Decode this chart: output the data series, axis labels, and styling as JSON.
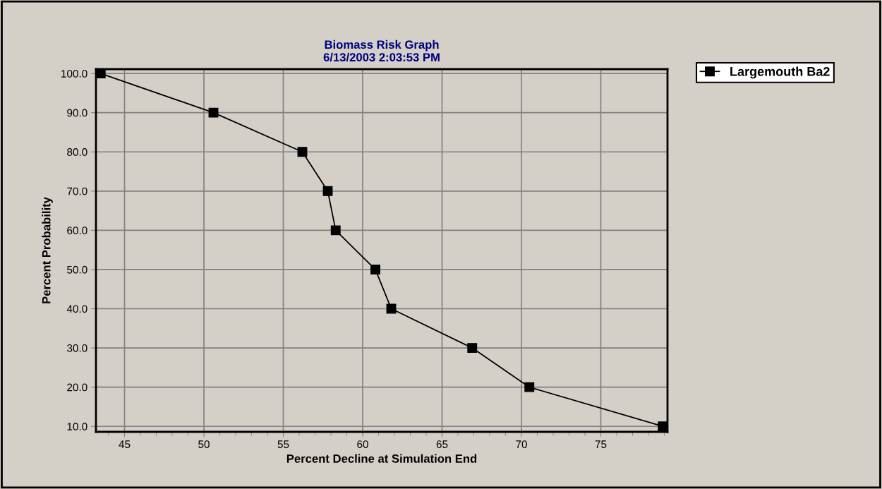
{
  "chart_data": {
    "type": "line",
    "title": "Biomass Risk Graph\n6/13/2003 2:03:53 PM",
    "xlabel": "Percent Decline at Simulation End",
    "ylabel": "Percent Probability",
    "x": [
      43.5,
      50.6,
      56.2,
      57.8,
      58.3,
      60.8,
      61.8,
      66.9,
      70.5,
      78.9
    ],
    "series": [
      {
        "name": "Largemouth Ba2",
        "color": "#000000",
        "values": [
          100,
          90,
          80,
          70,
          60,
          50,
          40,
          30,
          20,
          10
        ]
      }
    ],
    "xlim": [
      43.2,
      79.2
    ],
    "xticks": [
      45,
      50,
      55,
      60,
      65,
      70,
      75
    ],
    "ylim": [
      8.6,
      101.1
    ],
    "yticks": [
      {
        "value": 10,
        "label": "10.0"
      },
      {
        "value": 20,
        "label": "20.0"
      },
      {
        "value": 30,
        "label": "30.0"
      },
      {
        "value": 40,
        "label": "40.0"
      },
      {
        "value": 50,
        "label": "50.0"
      },
      {
        "value": 60,
        "label": "60.0"
      },
      {
        "value": 70,
        "label": "70.0"
      },
      {
        "value": 80,
        "label": "80.0"
      },
      {
        "value": 90,
        "label": "90.0"
      },
      {
        "value": 100,
        "label": "100.0"
      }
    ],
    "grid": true,
    "legend": "right",
    "marker": "square",
    "line_style": "solid"
  }
}
